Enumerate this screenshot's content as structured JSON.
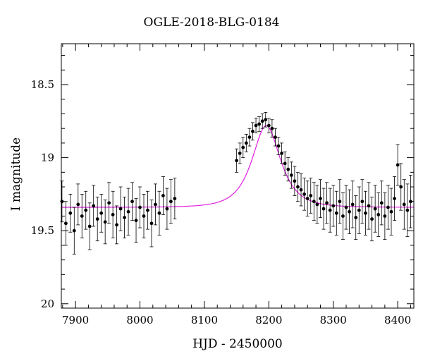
{
  "chart_data": {
    "type": "scatter",
    "title": "OGLE-2018-BLG-0184",
    "xlabel": "HJD - 2450000",
    "ylabel": "I magnitude",
    "xlim": [
      7878,
      8425
    ],
    "ylim": [
      20.03,
      18.22
    ],
    "y_inverted": true,
    "xticks": [
      7900,
      8000,
      8100,
      8200,
      8300,
      8400
    ],
    "yticks": [
      18.5,
      19,
      19.5,
      20
    ],
    "ytick_labels": [
      "18.5",
      "19",
      "19.5",
      "20"
    ],
    "grid": false,
    "colors": {
      "points": "#000000",
      "model": "#e020e0"
    },
    "model": {
      "name": "",
      "baseline_mag": 19.34,
      "peak_mag": 18.78,
      "t0": 8196,
      "tE": 32
    },
    "series": [
      {
        "name": "",
        "x": [
          7879,
          7885,
          7892,
          7898,
          7904,
          7910,
          7916,
          7922,
          7928,
          7934,
          7940,
          7946,
          7952,
          7958,
          7964,
          7970,
          7976,
          7982,
          7988,
          7994,
          8000,
          8006,
          8012,
          8018,
          8024,
          8030,
          8036,
          8042,
          8048,
          8054,
          8150,
          8155,
          8160,
          8165,
          8170,
          8175,
          8180,
          8185,
          8190,
          8195,
          8200,
          8205,
          8210,
          8215,
          8220,
          8225,
          8230,
          8235,
          8240,
          8245,
          8250,
          8255,
          8260,
          8265,
          8270,
          8275,
          8280,
          8285,
          8290,
          8295,
          8300,
          8305,
          8310,
          8315,
          8320,
          8325,
          8330,
          8335,
          8340,
          8345,
          8350,
          8355,
          8360,
          8365,
          8370,
          8375,
          8380,
          8385,
          8390,
          8395,
          8400,
          8405,
          8410,
          8415,
          8420
        ],
        "y": [
          19.3,
          19.45,
          19.38,
          19.5,
          19.32,
          19.4,
          19.36,
          19.47,
          19.33,
          19.42,
          19.38,
          19.44,
          19.31,
          19.39,
          19.46,
          19.35,
          19.41,
          19.37,
          19.3,
          19.43,
          19.34,
          19.4,
          19.36,
          19.45,
          19.32,
          19.38,
          19.26,
          19.35,
          19.3,
          19.28,
          19.02,
          18.97,
          18.93,
          18.9,
          18.86,
          18.82,
          18.78,
          18.77,
          18.75,
          18.74,
          18.78,
          18.8,
          18.86,
          18.92,
          18.97,
          19.04,
          19.08,
          19.12,
          19.16,
          19.2,
          19.22,
          19.25,
          19.28,
          19.26,
          19.3,
          19.32,
          19.28,
          19.35,
          19.31,
          19.36,
          19.33,
          19.38,
          19.3,
          19.4,
          19.34,
          19.37,
          19.32,
          19.41,
          19.36,
          19.3,
          19.38,
          19.33,
          19.42,
          19.35,
          19.39,
          19.31,
          19.4,
          19.34,
          19.37,
          19.28,
          19.05,
          19.2,
          19.32,
          19.36,
          19.3
        ],
        "yerr": [
          0.14,
          0.15,
          0.13,
          0.16,
          0.14,
          0.15,
          0.13,
          0.16,
          0.14,
          0.15,
          0.13,
          0.15,
          0.14,
          0.16,
          0.13,
          0.15,
          0.14,
          0.16,
          0.13,
          0.15,
          0.14,
          0.15,
          0.13,
          0.16,
          0.14,
          0.15,
          0.13,
          0.14,
          0.15,
          0.14,
          0.08,
          0.07,
          0.07,
          0.06,
          0.06,
          0.06,
          0.05,
          0.05,
          0.05,
          0.05,
          0.05,
          0.06,
          0.06,
          0.06,
          0.07,
          0.08,
          0.08,
          0.09,
          0.1,
          0.1,
          0.11,
          0.11,
          0.12,
          0.12,
          0.13,
          0.13,
          0.13,
          0.14,
          0.14,
          0.15,
          0.14,
          0.15,
          0.15,
          0.16,
          0.15,
          0.15,
          0.16,
          0.15,
          0.16,
          0.15,
          0.15,
          0.16,
          0.15,
          0.16,
          0.15,
          0.15,
          0.16,
          0.15,
          0.16,
          0.15,
          0.14,
          0.16,
          0.17,
          0.18,
          0.18
        ]
      }
    ]
  }
}
